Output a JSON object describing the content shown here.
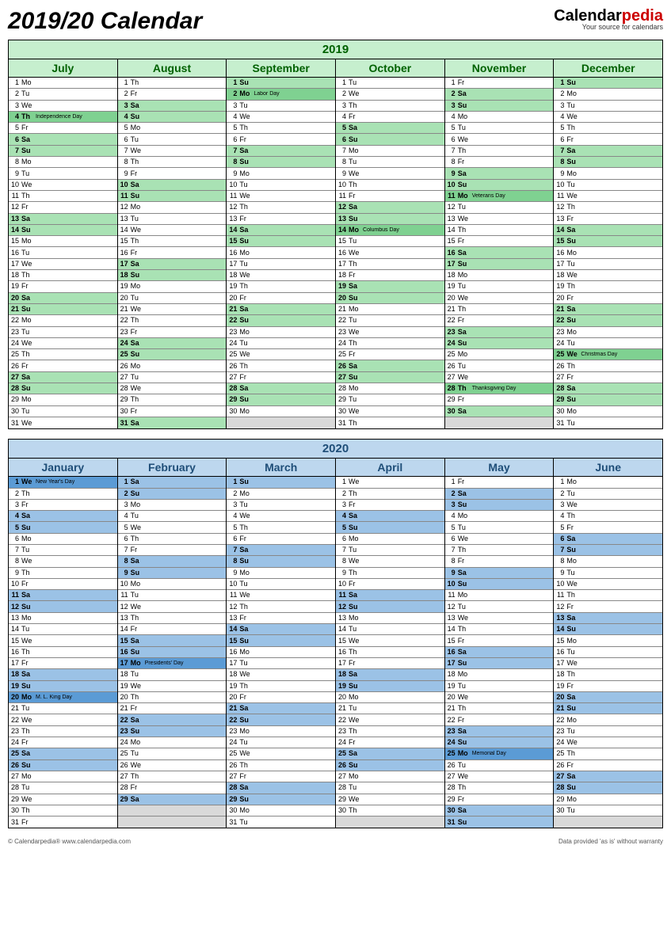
{
  "title": "2019/20 Calendar",
  "logo": {
    "pedia": "pedia",
    "calendar": "Calendar",
    "sub": "Your source for calendars"
  },
  "footer": {
    "left": "© Calendarpedia®   www.calendarpedia.com",
    "right": "Data provided 'as is' without warranty"
  },
  "colors": {
    "y2019": {
      "header": "#c6efce",
      "weekend": "#a9e2b4",
      "holiday": "#7fd191",
      "text": "#006100"
    },
    "y2020": {
      "header": "#bdd7ee",
      "weekend": "#9bc2e6",
      "holiday": "#5b9bd5",
      "text": "#1f4e78"
    }
  },
  "blocks": [
    {
      "year": "2019",
      "palette": "y2019",
      "months": [
        "July",
        "August",
        "September",
        "October",
        "November",
        "December"
      ],
      "firstDow": [
        0,
        3,
        6,
        1,
        4,
        6
      ],
      "ndays": [
        31,
        31,
        30,
        31,
        30,
        31
      ],
      "holidays": {
        "0": {
          "4": "Independence Day"
        },
        "2": {
          "2": "Labor Day"
        },
        "3": {
          "14": "Columbus Day"
        },
        "4": {
          "11": "Veterans Day",
          "28": "Thanksgiving Day"
        },
        "5": {
          "25": "Christmas Day"
        }
      }
    },
    {
      "year": "2020",
      "palette": "y2020",
      "months": [
        "January",
        "February",
        "March",
        "April",
        "May",
        "June"
      ],
      "firstDow": [
        2,
        5,
        6,
        2,
        4,
        0
      ],
      "ndays": [
        31,
        29,
        31,
        30,
        31,
        30
      ],
      "holidays": {
        "0": {
          "1": "New Year's Day",
          "20": "M. L. King Day"
        },
        "1": {
          "17": "Presidents' Day"
        },
        "4": {
          "25": "Memorial Day"
        }
      }
    }
  ],
  "dowLabels": [
    "Mo",
    "Tu",
    "We",
    "Th",
    "Fr",
    "Sa",
    "Su"
  ]
}
